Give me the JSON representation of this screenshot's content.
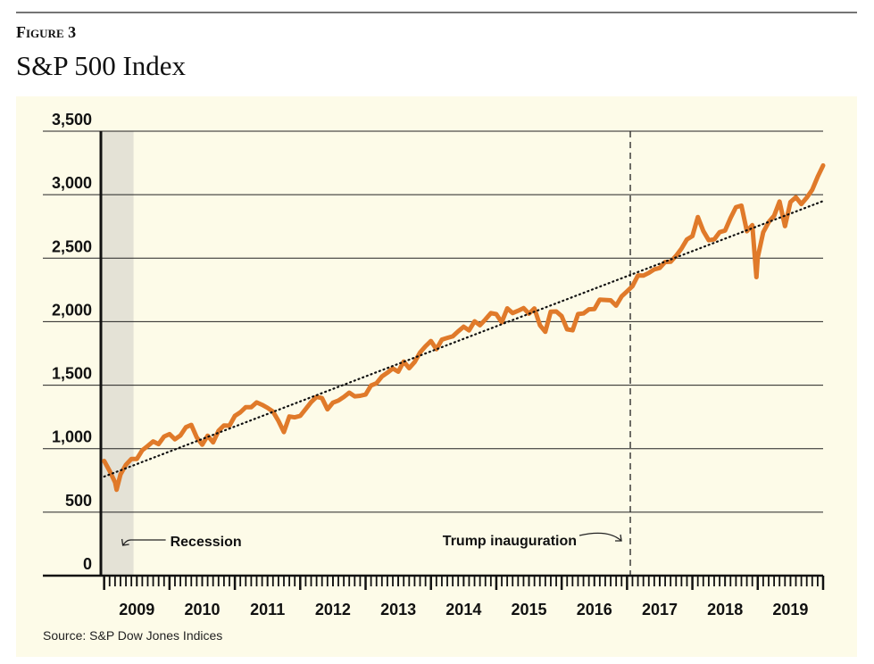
{
  "figure_label": "Figure 3",
  "chart_data": {
    "type": "line",
    "title": "S&P 500 Index",
    "source": "Source: S&P Dow Jones Indices",
    "x": [
      2009.0,
      2009.083,
      2009.167,
      2009.19,
      2009.25,
      2009.333,
      2009.417,
      2009.5,
      2009.583,
      2009.667,
      2009.75,
      2009.833,
      2009.917,
      2010.0,
      2010.083,
      2010.167,
      2010.25,
      2010.333,
      2010.417,
      2010.5,
      2010.583,
      2010.667,
      2010.75,
      2010.833,
      2010.917,
      2011.0,
      2011.083,
      2011.167,
      2011.25,
      2011.333,
      2011.417,
      2011.5,
      2011.583,
      2011.667,
      2011.75,
      2011.833,
      2011.917,
      2012.0,
      2012.083,
      2012.167,
      2012.25,
      2012.333,
      2012.417,
      2012.5,
      2012.583,
      2012.667,
      2012.75,
      2012.833,
      2012.917,
      2013.0,
      2013.083,
      2013.167,
      2013.25,
      2013.333,
      2013.417,
      2013.5,
      2013.583,
      2013.667,
      2013.75,
      2013.833,
      2013.917,
      2014.0,
      2014.083,
      2014.167,
      2014.25,
      2014.333,
      2014.417,
      2014.5,
      2014.583,
      2014.667,
      2014.75,
      2014.833,
      2014.917,
      2015.0,
      2015.083,
      2015.167,
      2015.25,
      2015.333,
      2015.417,
      2015.5,
      2015.583,
      2015.667,
      2015.75,
      2015.833,
      2015.917,
      2016.0,
      2016.083,
      2016.167,
      2016.25,
      2016.333,
      2016.417,
      2016.5,
      2016.583,
      2016.667,
      2016.75,
      2016.833,
      2016.917,
      2017.0,
      2017.083,
      2017.167,
      2017.25,
      2017.333,
      2017.417,
      2017.5,
      2017.583,
      2017.667,
      2017.75,
      2017.833,
      2017.917,
      2018.0,
      2018.083,
      2018.167,
      2018.25,
      2018.333,
      2018.417,
      2018.5,
      2018.583,
      2018.667,
      2018.75,
      2018.833,
      2018.917,
      2018.98,
      2019.0,
      2019.083,
      2019.167,
      2019.25,
      2019.333,
      2019.417,
      2019.5,
      2019.583,
      2019.667,
      2019.75,
      2019.833,
      2019.917,
      2020.0
    ],
    "series": [
      {
        "color": "#e07a2a",
        "values": [
          903,
          826,
          735,
          676,
          798,
          873,
          919,
          919,
          987,
          1021,
          1057,
          1036,
          1096,
          1115,
          1074,
          1104,
          1169,
          1187,
          1089,
          1031,
          1102,
          1049,
          1141,
          1183,
          1181,
          1258,
          1286,
          1327,
          1326,
          1364,
          1345,
          1321,
          1292,
          1219,
          1131,
          1253,
          1247,
          1258,
          1312,
          1366,
          1408,
          1398,
          1310,
          1362,
          1379,
          1407,
          1441,
          1412,
          1416,
          1426,
          1498,
          1515,
          1569,
          1598,
          1631,
          1606,
          1686,
          1633,
          1682,
          1757,
          1806,
          1848,
          1783,
          1859,
          1872,
          1884,
          1924,
          1960,
          1931,
          2003,
          1972,
          2018,
          2068,
          2059,
          1995,
          2105,
          2068,
          2086,
          2107,
          2063,
          2104,
          1972,
          1920,
          2079,
          2080,
          2044,
          1940,
          1932,
          2060,
          2065,
          2097,
          2099,
          2174,
          2171,
          2168,
          2126,
          2199,
          2239,
          2279,
          2364,
          2363,
          2384,
          2412,
          2423,
          2470,
          2472,
          2519,
          2575,
          2648,
          2674,
          2824,
          2714,
          2641,
          2648,
          2705,
          2718,
          2816,
          2902,
          2914,
          2712,
          2760,
          2351,
          2507,
          2704,
          2784,
          2834,
          2946,
          2752,
          2942,
          2980,
          2926,
          2977,
          3038,
          3141,
          3230
        ]
      }
    ],
    "trend_line": {
      "x": [
        2009.0,
        2020.0
      ],
      "values": [
        780,
        2950
      ]
    },
    "recession": {
      "label": "Recession",
      "xlim": [
        2008.95,
        2009.45
      ]
    },
    "event_line": {
      "label": "Trump inauguration",
      "x": 2017.05
    },
    "xlim": [
      2008.95,
      2020.0
    ],
    "xticks": [
      {
        "value": 2009.5,
        "label": "2009"
      },
      {
        "value": 2010.5,
        "label": "2010"
      },
      {
        "value": 2011.5,
        "label": "2011"
      },
      {
        "value": 2012.5,
        "label": "2012"
      },
      {
        "value": 2013.5,
        "label": "2013"
      },
      {
        "value": 2014.5,
        "label": "2014"
      },
      {
        "value": 2015.5,
        "label": "2015"
      },
      {
        "value": 2016.5,
        "label": "2016"
      },
      {
        "value": 2017.5,
        "label": "2017"
      },
      {
        "value": 2018.5,
        "label": "2018"
      },
      {
        "value": 2019.5,
        "label": "2019"
      }
    ],
    "ylim": [
      0,
      3500
    ],
    "yticks": [
      0,
      500,
      {
        "value": 1000,
        "label": "1,000"
      },
      {
        "value": 1500,
        "label": "1,500"
      },
      {
        "value": 2000,
        "label": "2,000"
      },
      {
        "value": 2500,
        "label": "2,500"
      },
      {
        "value": 3000,
        "label": "3,000"
      },
      {
        "value": 3500,
        "label": "3,500"
      }
    ],
    "grid": true
  }
}
